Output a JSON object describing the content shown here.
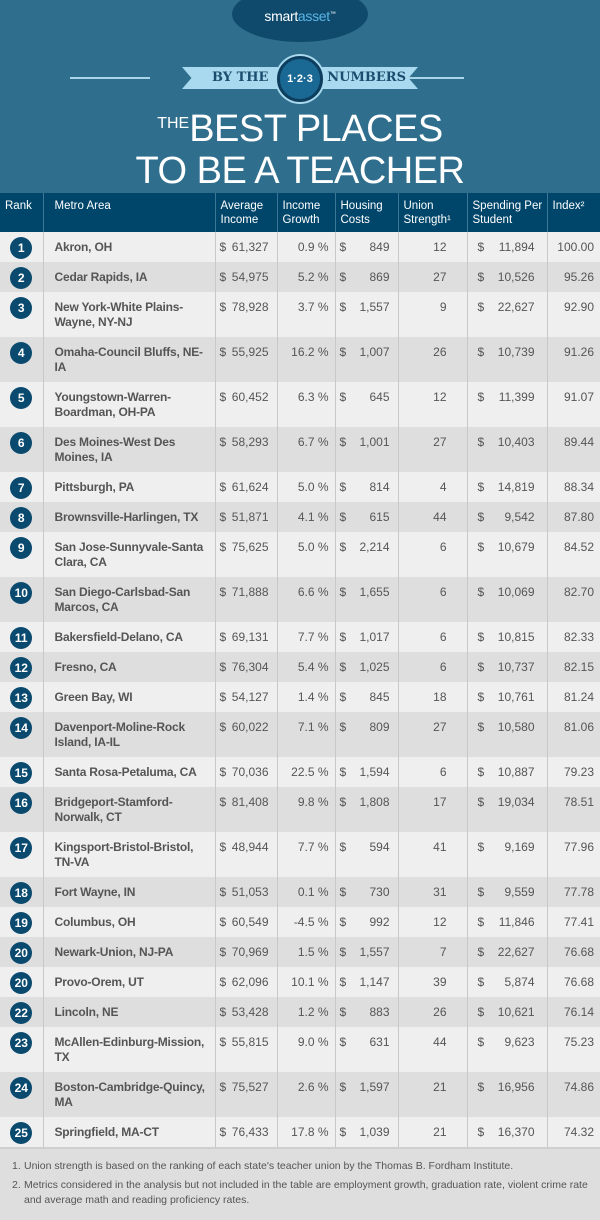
{
  "logo": {
    "text_a": "smart",
    "text_b": "asset",
    "tm": "™"
  },
  "banner": {
    "left": "BY THE",
    "badge": "1·2·3",
    "right": "NUMBERS"
  },
  "title": {
    "small": "THE",
    "line1": "BEST PLACES",
    "line2": "TO BE A TEACHER"
  },
  "colors": {
    "background": "#2f6f8d",
    "header": "#00466b",
    "rank_badge": "#0a4a6f",
    "row_light": "#efefef",
    "row_dark": "#dedede"
  },
  "table": {
    "headers": [
      "Rank",
      "Metro Area",
      "Average Income",
      "Income Growth",
      "Housing Costs",
      "Union Strength¹",
      "Spending Per Student",
      "Index²"
    ],
    "rows": [
      [
        "1",
        "Akron, OH",
        "61,327",
        "0.9 %",
        "849",
        "12",
        "11,894",
        "100.00"
      ],
      [
        "2",
        "Cedar Rapids, IA",
        "54,975",
        "5.2 %",
        "869",
        "27",
        "10,526",
        "95.26"
      ],
      [
        "3",
        "New York-White Plains-Wayne, NY-NJ",
        "78,928",
        "3.7 %",
        "1,557",
        "9",
        "22,627",
        "92.90"
      ],
      [
        "4",
        "Omaha-Council Bluffs, NE-IA",
        "55,925",
        "16.2 %",
        "1,007",
        "26",
        "10,739",
        "91.26"
      ],
      [
        "5",
        "Youngstown-Warren-Boardman, OH-PA",
        "60,452",
        "6.3 %",
        "645",
        "12",
        "11,399",
        "91.07"
      ],
      [
        "6",
        "Des Moines-West Des Moines, IA",
        "58,293",
        "6.7 %",
        "1,001",
        "27",
        "10,403",
        "89.44"
      ],
      [
        "7",
        "Pittsburgh, PA",
        "61,624",
        "5.0 %",
        "814",
        "4",
        "14,819",
        "88.34"
      ],
      [
        "8",
        "Brownsville-Harlingen, TX",
        "51,871",
        "4.1 %",
        "615",
        "44",
        "9,542",
        "87.80"
      ],
      [
        "9",
        "San Jose-Sunnyvale-Santa Clara, CA",
        "75,625",
        "5.0 %",
        "2,214",
        "6",
        "10,679",
        "84.52"
      ],
      [
        "10",
        "San Diego-Carlsbad-San Marcos, CA",
        "71,888",
        "6.6 %",
        "1,655",
        "6",
        "10,069",
        "82.70"
      ],
      [
        "11",
        "Bakersfield-Delano, CA",
        "69,131",
        "7.7 %",
        "1,017",
        "6",
        "10,815",
        "82.33"
      ],
      [
        "12",
        "Fresno, CA",
        "76,304",
        "5.4 %",
        "1,025",
        "6",
        "10,737",
        "82.15"
      ],
      [
        "13",
        "Green Bay, WI",
        "54,127",
        "1.4 %",
        "845",
        "18",
        "10,761",
        "81.24"
      ],
      [
        "14",
        "Davenport-Moline-Rock Island, IA-IL",
        "60,022",
        "7.1 %",
        "809",
        "27",
        "10,580",
        "81.06"
      ],
      [
        "15",
        "Santa Rosa-Petaluma, CA",
        "70,036",
        "22.5 %",
        "1,594",
        "6",
        "10,887",
        "79.23"
      ],
      [
        "16",
        "Bridgeport-Stamford-Norwalk, CT",
        "81,408",
        "9.8 %",
        "1,808",
        "17",
        "19,034",
        "78.51"
      ],
      [
        "17",
        "Kingsport-Bristol-Bristol, TN-VA",
        "48,944",
        "7.7 %",
        "594",
        "41",
        "9,169",
        "77.96"
      ],
      [
        "18",
        "Fort Wayne, IN",
        "51,053",
        "0.1 %",
        "730",
        "31",
        "9,559",
        "77.78"
      ],
      [
        "19",
        "Columbus, OH",
        "60,549",
        "-4.5 %",
        "992",
        "12",
        "11,846",
        "77.41"
      ],
      [
        "20",
        "Newark-Union, NJ-PA",
        "70,969",
        "1.5 %",
        "1,557",
        "7",
        "22,627",
        "76.68"
      ],
      [
        "20",
        "Provo-Orem, UT",
        "62,096",
        "10.1 %",
        "1,147",
        "39",
        "5,874",
        "76.68"
      ],
      [
        "22",
        "Lincoln, NE",
        "53,428",
        "1.2 %",
        "883",
        "26",
        "10,621",
        "76.14"
      ],
      [
        "23",
        "McAllen-Edinburg-Mission, TX",
        "55,815",
        "9.0 %",
        "631",
        "44",
        "9,623",
        "75.23"
      ],
      [
        "24",
        "Boston-Cambridge-Quincy, MA",
        "75,527",
        "2.6 %",
        "1,597",
        "21",
        "16,956",
        "74.86"
      ],
      [
        "25",
        "Springfield, MA-CT",
        "76,433",
        "17.8 %",
        "1,039",
        "21",
        "16,370",
        "74.32"
      ]
    ],
    "currency": "$"
  },
  "footnotes": [
    {
      "n": "1.",
      "text": "Union strength is based on the ranking of each state's teacher union by the Thomas B. Fordham Institute."
    },
    {
      "n": "2.",
      "text": "Metrics considered in the analysis but not included in the table are employment growth, graduation rate, violent crime rate and average math and reading proficiency rates."
    }
  ]
}
